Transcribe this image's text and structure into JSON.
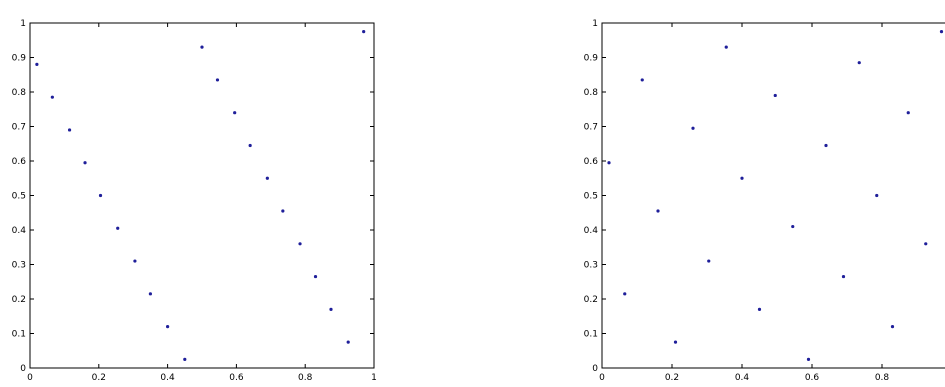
{
  "marker_color": "#1f1f9a",
  "chart_data": [
    {
      "type": "scatter",
      "xlim": [
        0,
        1
      ],
      "ylim": [
        0,
        1
      ],
      "x_ticks": [
        "0",
        "0.2",
        "0.4",
        "0.6",
        "0.8",
        "1"
      ],
      "y_ticks": [
        "0",
        "0.1",
        "0.2",
        "0.3",
        "0.4",
        "0.5",
        "0.6",
        "0.7",
        "0.8",
        "0.9",
        "1"
      ],
      "grid": false,
      "points": {
        "x": [
          0.02,
          0.065,
          0.115,
          0.16,
          0.205,
          0.255,
          0.305,
          0.35,
          0.4,
          0.45,
          0.5,
          0.545,
          0.595,
          0.64,
          0.69,
          0.735,
          0.785,
          0.83,
          0.875,
          0.925,
          0.97
        ],
        "y": [
          0.88,
          0.785,
          0.69,
          0.595,
          0.5,
          0.405,
          0.31,
          0.215,
          0.12,
          0.025,
          0.93,
          0.835,
          0.74,
          0.645,
          0.55,
          0.455,
          0.36,
          0.265,
          0.17,
          0.075,
          0.975
        ]
      }
    },
    {
      "type": "scatter",
      "xlim": [
        0,
        1
      ],
      "ylim": [
        0,
        1
      ],
      "x_ticks": [
        "0",
        "0.2",
        "0.4",
        "0.6",
        "0.8"
      ],
      "y_ticks": [
        "0",
        "0.1",
        "0.2",
        "0.3",
        "0.4",
        "0.5",
        "0.6",
        "0.7",
        "0.8",
        "0.9",
        "1"
      ],
      "grid": false,
      "points": {
        "x": [
          0.02,
          0.065,
          0.115,
          0.16,
          0.21,
          0.26,
          0.305,
          0.355,
          0.4,
          0.45,
          0.495,
          0.545,
          0.59,
          0.64,
          0.69,
          0.735,
          0.785,
          0.83,
          0.875,
          0.925,
          0.97
        ],
        "y": [
          0.595,
          0.215,
          0.835,
          0.455,
          0.075,
          0.695,
          0.31,
          0.93,
          0.55,
          0.17,
          0.79,
          0.41,
          0.025,
          0.645,
          0.265,
          0.885,
          0.5,
          0.12,
          0.74,
          0.36,
          0.975
        ]
      }
    }
  ]
}
